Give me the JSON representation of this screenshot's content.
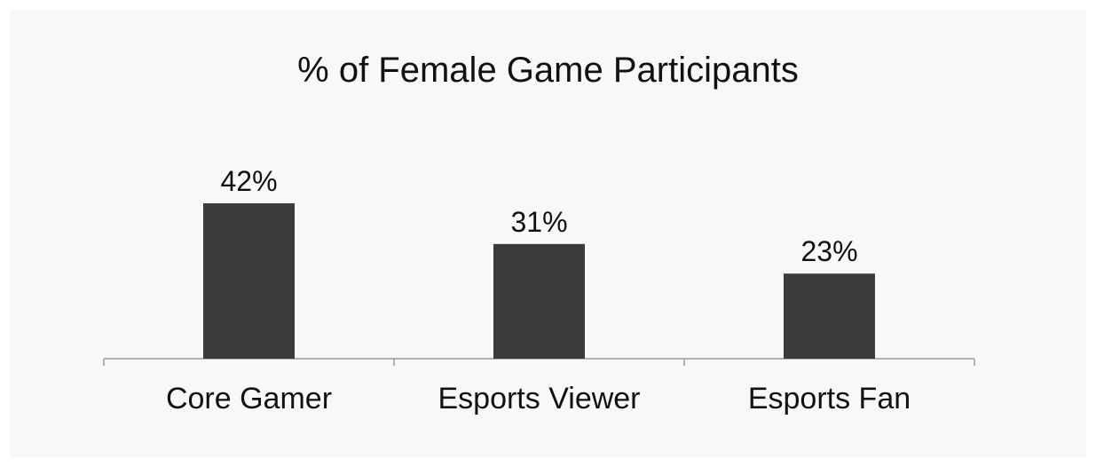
{
  "chart_data": {
    "type": "bar",
    "title": "% of Female Game Participants",
    "categories": [
      "Core Gamer",
      "Esports Viewer",
      "Esports Fan"
    ],
    "values": [
      42,
      31,
      23
    ],
    "value_labels": [
      "42%",
      "31%",
      "23%"
    ],
    "xlabel": "",
    "ylabel": "",
    "ylim": [
      0,
      42
    ],
    "grid": false,
    "legend": "none",
    "colors": {
      "bar": "#3b3b3b",
      "axis": "#9a9a9a",
      "background": "#f8f8f8"
    }
  }
}
